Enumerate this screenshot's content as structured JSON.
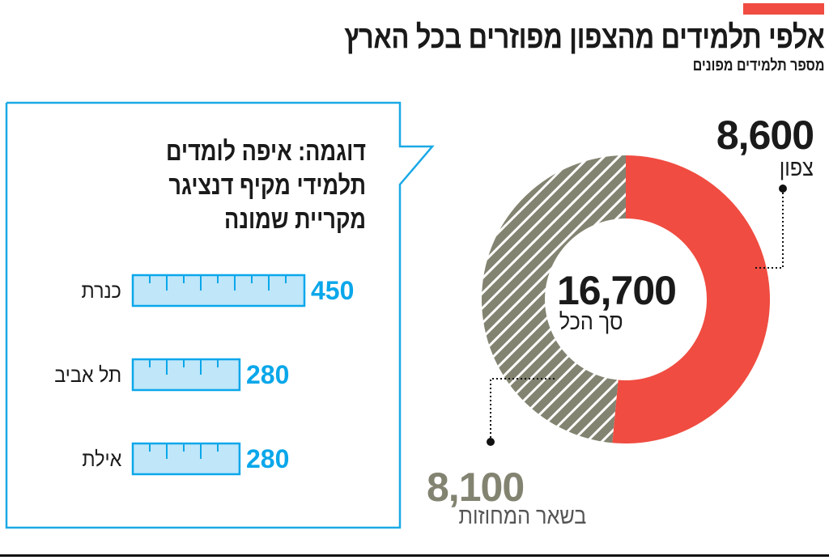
{
  "header": {
    "title": "אלפי תלמידים מהצפון מפוזרים בכל הארץ",
    "subtitle": "מספר תלמידים מפונים"
  },
  "colors": {
    "accent": "#f04c41",
    "north": "#f04c41",
    "rest": "#838371",
    "bar_fill": "#bfe6f9",
    "bar_stroke": "#0aa7ea"
  },
  "chart_data": [
    {
      "type": "pie",
      "variant": "donut",
      "total_value": "16,700",
      "total_label": "סך הכל",
      "slices": [
        {
          "label": "צפון",
          "value": 8600,
          "display": "8,600",
          "color": "#f04c41",
          "pattern": "solid"
        },
        {
          "label": "בשאר המחוזות",
          "value": 8100,
          "display": "8,100",
          "color": "#838371",
          "pattern": "diagonal-stripes"
        }
      ]
    },
    {
      "type": "bar",
      "orientation": "horizontal",
      "title": "דוגמה: איפה לומדים תלמידי מקיף דנציגר מקריית שמונה",
      "categories": [
        "כנרת",
        "תל אביב",
        "אילת"
      ],
      "values": [
        450,
        280,
        280
      ]
    }
  ]
}
